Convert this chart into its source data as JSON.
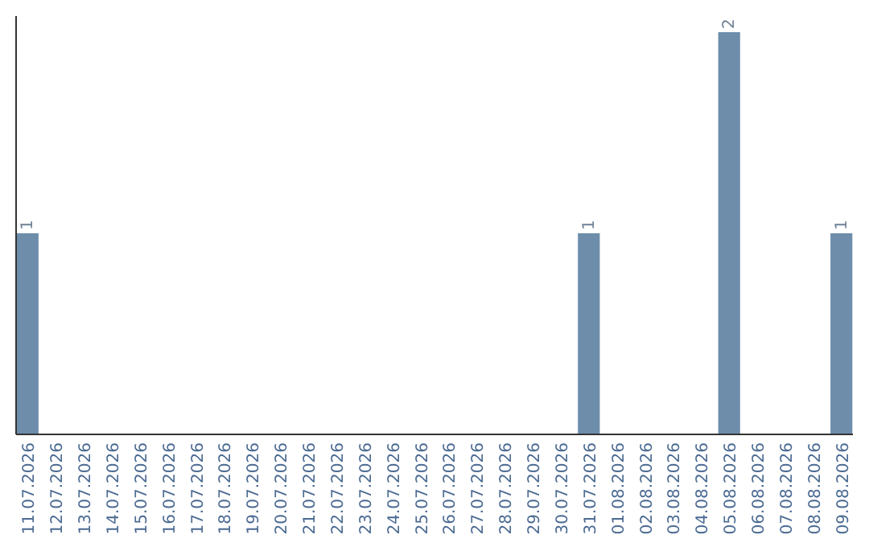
{
  "chart_data": {
    "type": "bar",
    "relative": false,
    "categories": [
      "11.07.2026",
      "12.07.2026",
      "13.07.2026",
      "14.07.2026",
      "15.07.2026",
      "16.07.2026",
      "17.07.2026",
      "18.07.2026",
      "19.07.2026",
      "20.07.2026",
      "21.07.2026",
      "22.07.2026",
      "23.07.2026",
      "24.07.2026",
      "25.07.2026",
      "26.07.2026",
      "27.07.2026",
      "28.07.2026",
      "29.07.2026",
      "30.07.2026",
      "31.07.2026",
      "01.08.2026",
      "02.08.2026",
      "03.08.2026",
      "04.08.2026",
      "05.08.2026",
      "06.08.2026",
      "07.08.2026",
      "08.08.2026",
      "09.08.2026"
    ],
    "values": [
      1,
      0,
      0,
      0,
      0,
      0,
      0,
      0,
      0,
      0,
      0,
      0,
      0,
      0,
      0,
      0,
      0,
      0,
      0,
      0,
      1,
      0,
      0,
      0,
      0,
      2,
      0,
      0,
      0,
      1
    ],
    "value_labels": [
      "1",
      null,
      null,
      null,
      null,
      null,
      null,
      null,
      null,
      null,
      null,
      null,
      null,
      null,
      null,
      null,
      null,
      null,
      null,
      null,
      "1",
      null,
      null,
      null,
      null,
      "2",
      null,
      null,
      null,
      "1"
    ],
    "color": "#6d8dab"
  }
}
